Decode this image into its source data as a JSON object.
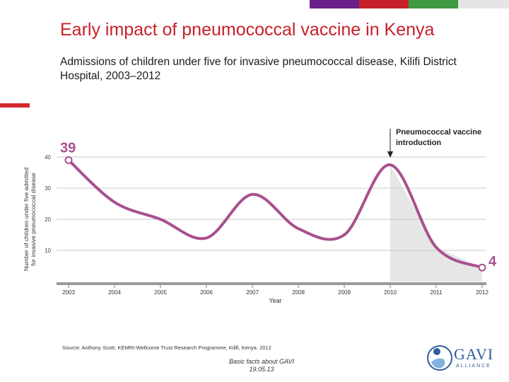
{
  "slide": {
    "title": "Early impact of pneumococcal vaccine in Kenya",
    "subtitle": "Admissions of children under five for invasive pneumococcal disease, Kilifi District Hospital, 2003–2012",
    "source": "Source: Anthony Scott, KEMRI-Wellcome Trust Research Programme, Kilifi, Kenya. 2012",
    "footer_line1": "Basic facts about GAVI",
    "footer_line2": "19.05.13",
    "logo_text": "GAVI",
    "logo_subtext": "ALLIANCE",
    "top_bar_colors": [
      "#6a1e8a",
      "#c8202a",
      "#3d9a3f",
      "#e5e5e5"
    ]
  },
  "chart_data": {
    "type": "line",
    "title": "",
    "xlabel": "Year",
    "ylabel": "Number of children under five admitted for invasive pneumococcal disease",
    "ylim": [
      0,
      40
    ],
    "yticks": [
      10,
      20,
      30,
      40
    ],
    "grid": true,
    "line_color": "#a8508f",
    "start_label": "39",
    "end_label": "4",
    "annotation": {
      "x": 2010,
      "text_line1": "Pneumococcal vaccine",
      "text_line2": "introduction"
    },
    "series": [
      {
        "x": [
          2003,
          2004,
          2005,
          2006,
          2007,
          2008,
          2009,
          2010,
          2011,
          2012
        ],
        "y": [
          39,
          25.5,
          20,
          14,
          28,
          17,
          15,
          37.5,
          11,
          4.5
        ]
      }
    ]
  }
}
